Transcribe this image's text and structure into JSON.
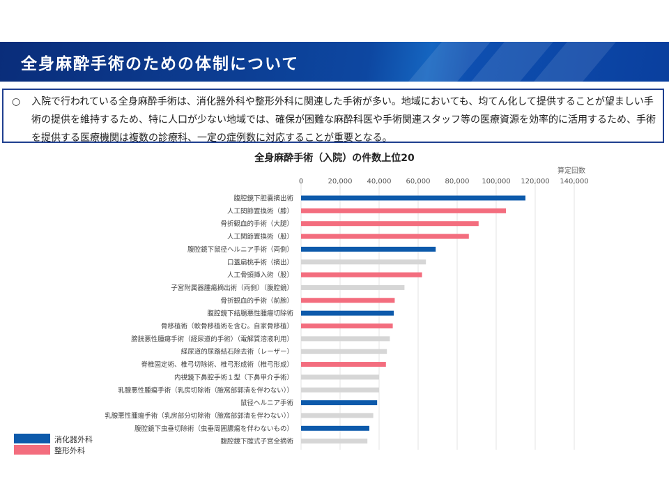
{
  "header": {
    "title": "全身麻酔手術のための体制について"
  },
  "summary": {
    "bullet": "○",
    "text": "入院で行われている全身麻酔手術は、消化器外科や整形外科に関連した手術が多い。地域においても、均てん化して提供することが望ましい手術の提供を維持するため、特に人口が少ない地域では、確保が困難な麻酔科医や手術関連スタッフ等の医療資源を効率的に活用するため、手術を提供する医療機関は複数の診療科、一定の症例数に対応することが重要となる。"
  },
  "colors": {
    "digestive": "#0d5aab",
    "orthopedic": "#f36d7e",
    "other": "#d6d6d6",
    "grid": "#e3e3e3",
    "banner": "#0d47a1"
  },
  "chart_data": {
    "type": "bar",
    "orientation": "horizontal",
    "title": "全身麻酔手術（入院）の件数上位20",
    "xlabel": "算定回数",
    "xlim": [
      0,
      140000
    ],
    "xticks": [
      "0",
      "20,000",
      "40,000",
      "60,000",
      "80,000",
      "100,000",
      "120,000",
      "140,000"
    ],
    "grid": true,
    "legend_position": "bottom-left",
    "legend": [
      {
        "key": "digestive",
        "label": "消化器外科"
      },
      {
        "key": "orthopedic",
        "label": "整形外科"
      }
    ],
    "categories": [
      "腹腔鏡下胆嚢摘出術",
      "人工関節置換術（膝）",
      "骨折観血的手術（大腿）",
      "人工関節置換術（股）",
      "腹腔鏡下鼠径ヘルニア手術（両側）",
      "口蓋扁桃手術（摘出）",
      "人工骨頭挿入術（股）",
      "子宮附属器腫瘍摘出術（両側）（腹腔鏡）",
      "骨折観血的手術（前腕）",
      "腹腔鏡下結腸悪性腫瘍切除術",
      "骨移植術（軟骨移植術を含む。自家骨移植）",
      "膀胱悪性腫瘍手術（経尿道的手術）（電解質溶液利用）",
      "経尿道的尿路結石除去術（レーザー）",
      "脊椎固定術、椎弓切除術、椎弓形成術（椎弓形成）",
      "内視鏡下鼻腔手術１型（下鼻甲介手術）",
      "乳腺悪性腫瘍手術（乳房切除術（腋窩部郭清を伴わない））",
      "鼠径ヘルニア手術",
      "乳腺悪性腫瘍手術（乳房部分切除術（腋窩部郭清を伴わない））",
      "腹腔鏡下虫垂切除術（虫垂周囲膿瘍を伴わないもの）",
      "腹腔鏡下腟式子宮全摘術"
    ],
    "values": [
      115000,
      105000,
      91000,
      86000,
      69000,
      64000,
      62000,
      53000,
      48000,
      47500,
      47000,
      45500,
      44000,
      43500,
      40000,
      40000,
      39000,
      37000,
      35000,
      34000
    ],
    "groups": [
      "digestive",
      "orthopedic",
      "orthopedic",
      "orthopedic",
      "digestive",
      "other",
      "orthopedic",
      "other",
      "orthopedic",
      "digestive",
      "orthopedic",
      "other",
      "other",
      "orthopedic",
      "other",
      "other",
      "digestive",
      "other",
      "digestive",
      "other"
    ]
  }
}
